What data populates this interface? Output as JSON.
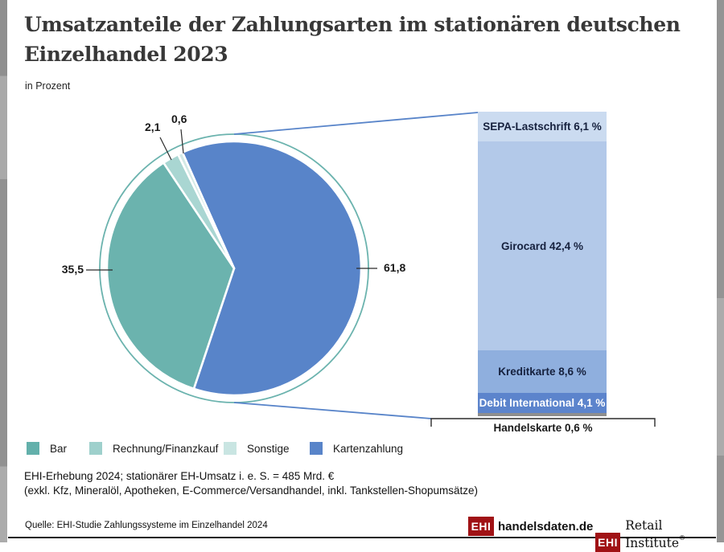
{
  "header": {
    "title": "Umsatzanteile der Zahlungsarten im stationären deutschen Einzelhandel 2023",
    "title_line1": "Umsatzanteile der Zahlungsarten im stationären deutschen",
    "title_line2": "Einzelhandel 2023",
    "unit_label": "in Prozent"
  },
  "chart_data": {
    "type": "pie",
    "title": "Umsatzanteile der Zahlungsarten im stationären deutschen Einzelhandel 2023",
    "unit": "Prozent",
    "pie": {
      "start_angle_deg": -24,
      "ring_color": "#6BB3AE",
      "connector_color": "#5884C9",
      "slices": [
        {
          "label": "Kartenzahlung",
          "value": 61.8,
          "display": "61,8",
          "color": "#5884C9"
        },
        {
          "label": "Bar",
          "value": 35.5,
          "display": "35,5",
          "color": "#6BB3AE"
        },
        {
          "label": "Rechnung/Finanzkauf",
          "value": 2.1,
          "display": "2,1",
          "color": "#A9D6D2"
        },
        {
          "label": "Sonstige",
          "value": 0.6,
          "display": "0,6",
          "color": "#D3E9E6"
        }
      ]
    },
    "card_breakdown": {
      "total": 61.8,
      "segments": [
        {
          "name": "SEPA-Lastschrift",
          "label": "SEPA-Lastschrift 6,1 %",
          "value": 6.1,
          "color": "#CBDBF0",
          "text_color": "#16213E"
        },
        {
          "name": "Girocard",
          "label": "Girocard 42,4 %",
          "value": 42.4,
          "color": "#B3C9E9",
          "text_color": "#16213E"
        },
        {
          "name": "Kreditkarte",
          "label": "Kreditkarte 8,6 %",
          "value": 8.6,
          "color": "#8FAFDE",
          "text_color": "#16213E"
        },
        {
          "name": "Debit International",
          "label": "Debit International 4,1 %",
          "value": 4.1,
          "color": "#5C84CC",
          "text_color": "#FFFFFF"
        },
        {
          "name": "Handelskarte",
          "label": "Handelskarte 0,6 %",
          "value": 0.6,
          "color": "#8E8E8E",
          "text_color": "#1A1A1A"
        }
      ]
    }
  },
  "legend": {
    "items": [
      {
        "label": "Bar",
        "color": "#63B0AB"
      },
      {
        "label": "Rechnung/Finanzkauf",
        "color": "#9ED0CC"
      },
      {
        "label": "Sonstige",
        "color": "#C9E5E2"
      },
      {
        "label": "Kartenzahlung",
        "color": "#5884C9"
      }
    ]
  },
  "footnote": {
    "line1": "EHI-Erhebung 2024; stationärer EH-Umsatz i. e. S. = 485 Mrd. €",
    "line2": "(exkl. Kfz, Mineralöl, Apotheken, E-Commerce/Versandhandel, inkl. Tankstellen-Shopumsätze)"
  },
  "source": "Quelle: EHI-Studie Zahlungssysteme im Einzelhandel 2024",
  "logos": {
    "badge_color": "#A01215",
    "handelsdaten": {
      "badge": "EHI",
      "text": "handelsdaten.de"
    },
    "retail_institute": {
      "badge": "EHI",
      "text": "Retail Institute",
      "registered": "®"
    }
  }
}
